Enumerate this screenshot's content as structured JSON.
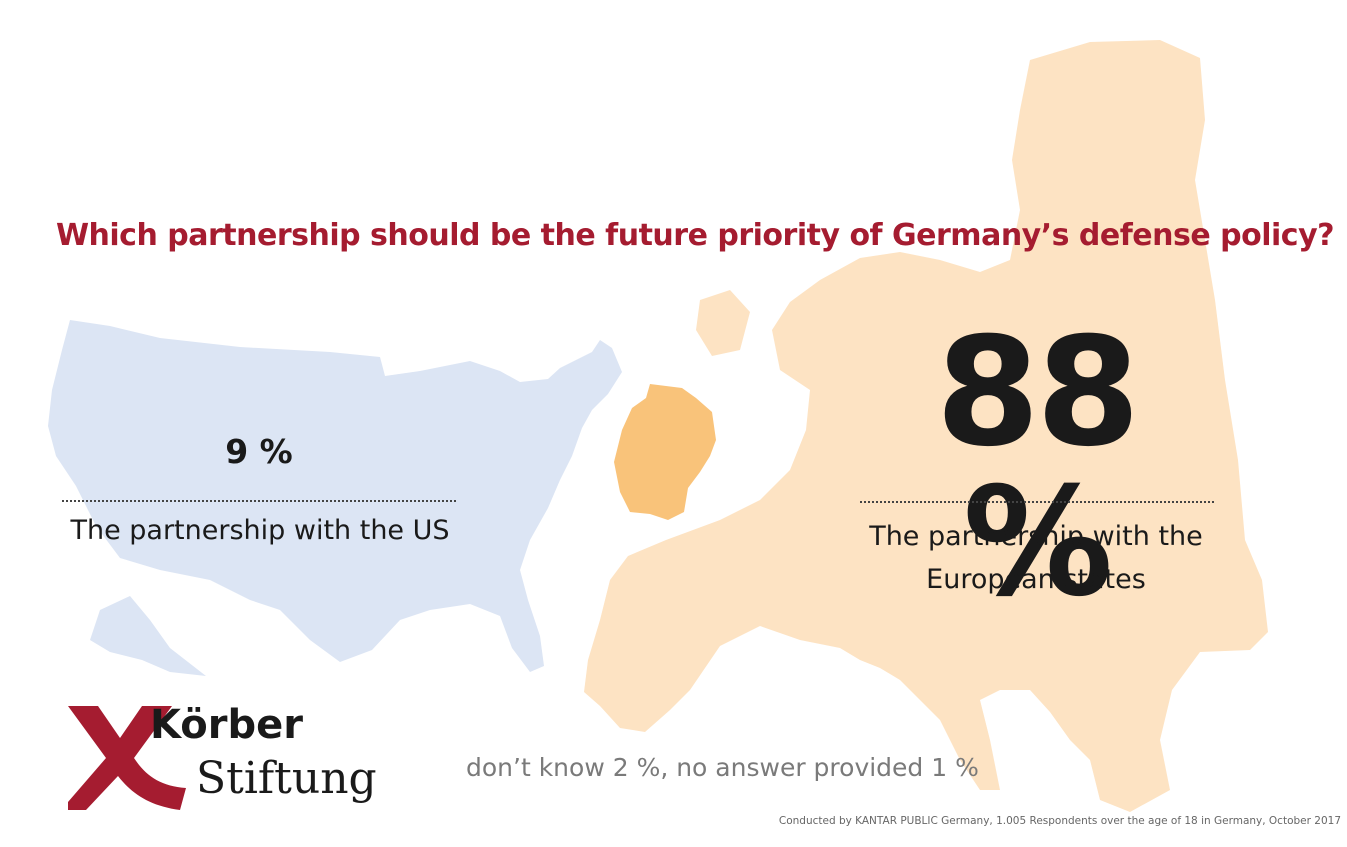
{
  "chart_data": {
    "type": "map",
    "title": "Which partnership should be the future priority of Germany’s defense policy?",
    "series": [
      {
        "name": "The partnership with the US",
        "value": 9,
        "display": "9 %"
      },
      {
        "name": "The partnership with the European states",
        "value": 88,
        "display": "88 %"
      }
    ],
    "other": "don’t know 2 %, no answer provided 1 %",
    "unit": "%"
  },
  "labels": {
    "us_line": "The partnership with the US",
    "eu_line1": "The partnership with the",
    "eu_line2": "European states"
  },
  "source": "Conducted by KANTAR PUBLIC Germany, 1.005 Respondents over the age of 18 in Germany, October 2017",
  "logo": {
    "line1": "Körber",
    "line2": "Stiftung"
  },
  "colors": {
    "title": "#a51c30",
    "us_map": "#dce5f4",
    "europe_map": "#fde3c3",
    "germany": "#f9c37a",
    "logo_red": "#a51c30",
    "text": "#1a1a1a",
    "muted": "#7a7a7a"
  }
}
